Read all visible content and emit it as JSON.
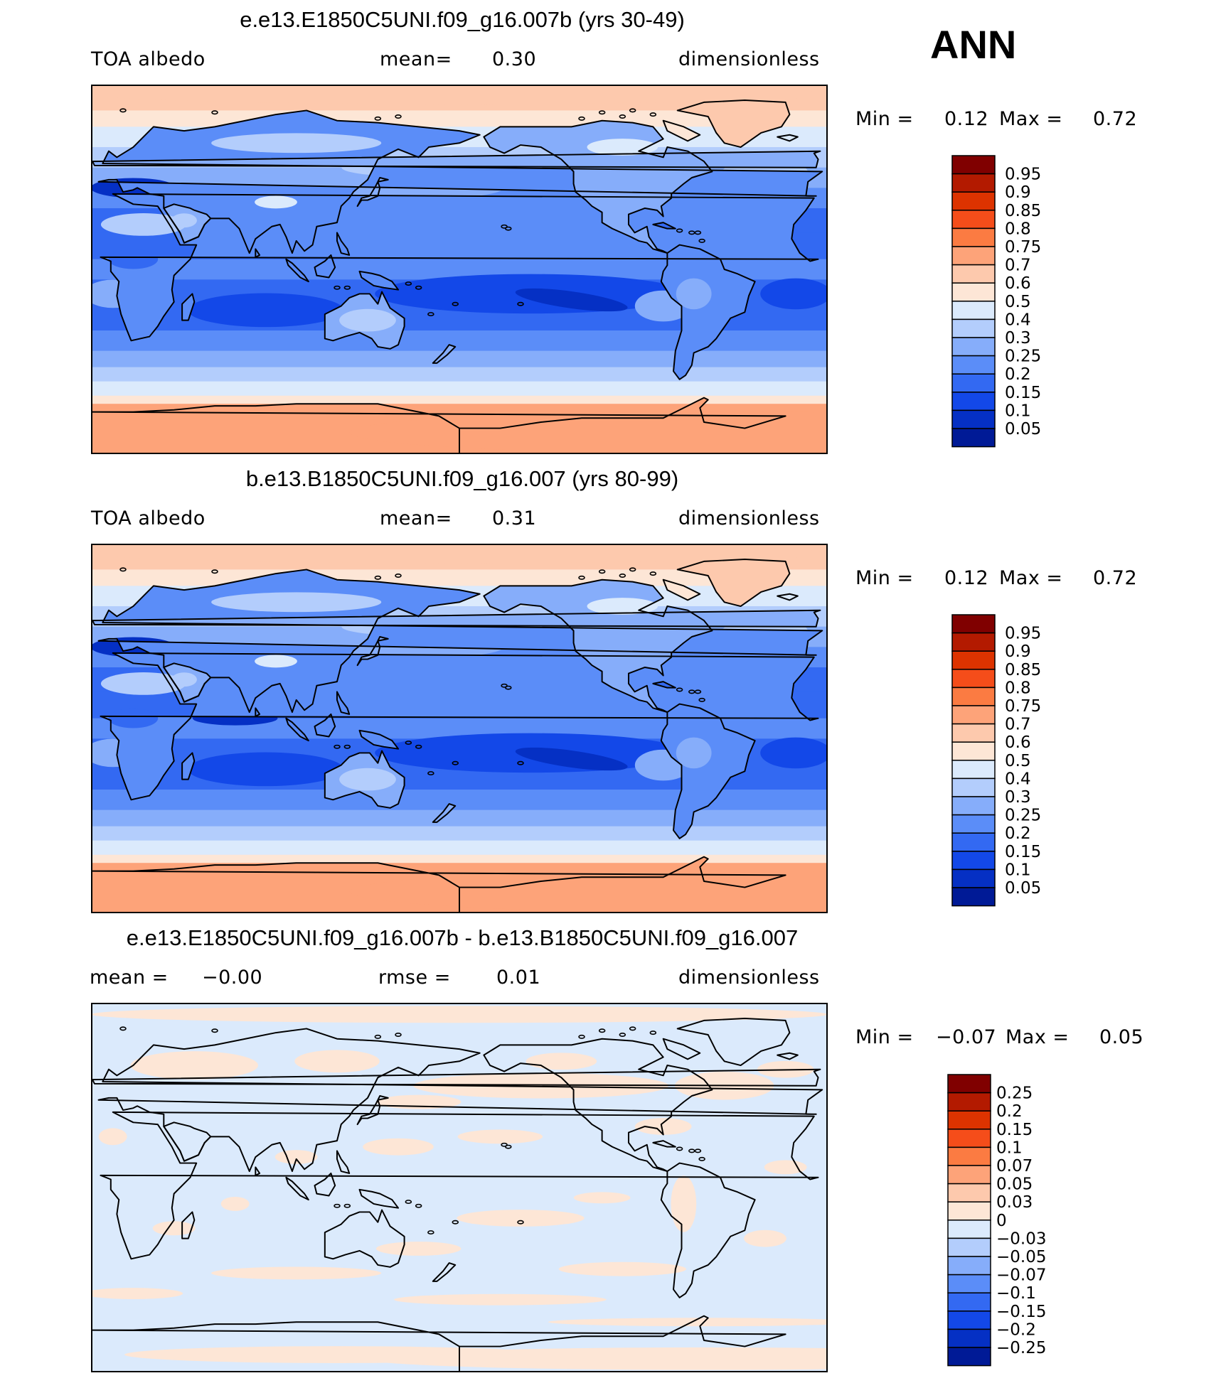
{
  "season_label": "ANN",
  "panels": [
    {
      "title": "e.e13.E1850C5UNI.f09_g16.007b (yrs 30-49)",
      "left_label": "TOA albedo",
      "mid_label": "mean=",
      "mid_value": "0.30",
      "right_label": "dimensionless",
      "min_label": "Min =",
      "min_value": "0.12",
      "max_label": "Max =",
      "max_value": "0.72",
      "field": "absolute",
      "colorbar": {
        "labels": [
          "0.95",
          "0.9",
          "0.85",
          "0.8",
          "0.75",
          "0.7",
          "0.6",
          "0.5",
          "0.4",
          "0.3",
          "0.25",
          "0.2",
          "0.15",
          "0.1",
          "0.05"
        ],
        "colors": [
          "#800000",
          "#b31a00",
          "#dd3300",
          "#f54d1a",
          "#fb7b42",
          "#fda379",
          "#fdc9ad",
          "#fde6d6",
          "#dbeafc",
          "#b3cdfc",
          "#86adfa",
          "#5b8df8",
          "#3369f2",
          "#1348e8",
          "#0530c4",
          "#001a96"
        ]
      }
    },
    {
      "title": "b.e13.B1850C5UNI.f09_g16.007 (yrs 80-99)",
      "left_label": "TOA albedo",
      "mid_label": "mean=",
      "mid_value": "0.31",
      "right_label": "dimensionless",
      "min_label": "Min =",
      "min_value": "0.12",
      "max_label": "Max =",
      "max_value": "0.72",
      "field": "absolute",
      "colorbar": {
        "labels": [
          "0.95",
          "0.9",
          "0.85",
          "0.8",
          "0.75",
          "0.7",
          "0.6",
          "0.5",
          "0.4",
          "0.3",
          "0.25",
          "0.2",
          "0.15",
          "0.1",
          "0.05"
        ],
        "colors": [
          "#800000",
          "#b31a00",
          "#dd3300",
          "#f54d1a",
          "#fb7b42",
          "#fda379",
          "#fdc9ad",
          "#fde6d6",
          "#dbeafc",
          "#b3cdfc",
          "#86adfa",
          "#5b8df8",
          "#3369f2",
          "#1348e8",
          "#0530c4",
          "#001a96"
        ]
      }
    },
    {
      "title": "e.e13.E1850C5UNI.f09_g16.007b - b.e13.B1850C5UNI.f09_g16.007",
      "left_label": "mean =",
      "left_value": "−0.00",
      "mid_label": "rmse =",
      "mid_value": "0.01",
      "right_label": "dimensionless",
      "min_label": "Min =",
      "min_value": "−0.07",
      "max_label": "Max =",
      "max_value": "0.05",
      "field": "difference",
      "colorbar": {
        "labels": [
          "0.25",
          "0.2",
          "0.15",
          "0.1",
          "0.07",
          "0.05",
          "0.03",
          "0",
          "−0.03",
          "−0.05",
          "−0.07",
          "−0.1",
          "−0.15",
          "−0.2",
          "−0.25"
        ],
        "colors": [
          "#800000",
          "#b31a00",
          "#dd3300",
          "#f54d1a",
          "#fb7b42",
          "#fda379",
          "#fdc9ad",
          "#fde6d6",
          "#dbeafc",
          "#b3cdfc",
          "#86adfa",
          "#5b8df8",
          "#3369f2",
          "#1348e8",
          "#0530c4",
          "#001a96"
        ]
      }
    }
  ],
  "chart_data": {
    "type": "heatmap",
    "projection": "cylindrical equidistant, global, centered 180",
    "variable": "TOA albedo",
    "units": "dimensionless",
    "season": "ANN",
    "panels": [
      {
        "case": "e.e13.E1850C5UNI.f09_g16.007b (yrs 30-49)",
        "mean": 0.3,
        "min": 0.12,
        "max": 0.72
      },
      {
        "case": "b.e13.B1850C5UNI.f09_g16.007 (yrs 80-99)",
        "mean": 0.31,
        "min": 0.12,
        "max": 0.72
      },
      {
        "case": "e.e13.E1850C5UNI.f09_g16.007b - b.e13.B1850C5UNI.f09_g16.007",
        "mean": -0.0,
        "rmse": 0.01,
        "min": -0.07,
        "max": 0.05
      }
    ],
    "contour_levels_absolute": [
      0.05,
      0.1,
      0.15,
      0.2,
      0.25,
      0.3,
      0.4,
      0.5,
      0.6,
      0.7,
      0.75,
      0.8,
      0.85,
      0.9,
      0.95
    ],
    "contour_levels_difference": [
      -0.25,
      -0.2,
      -0.15,
      -0.1,
      -0.07,
      -0.05,
      -0.03,
      0,
      0.03,
      0.05,
      0.07,
      0.1,
      0.15,
      0.2,
      0.25
    ]
  }
}
